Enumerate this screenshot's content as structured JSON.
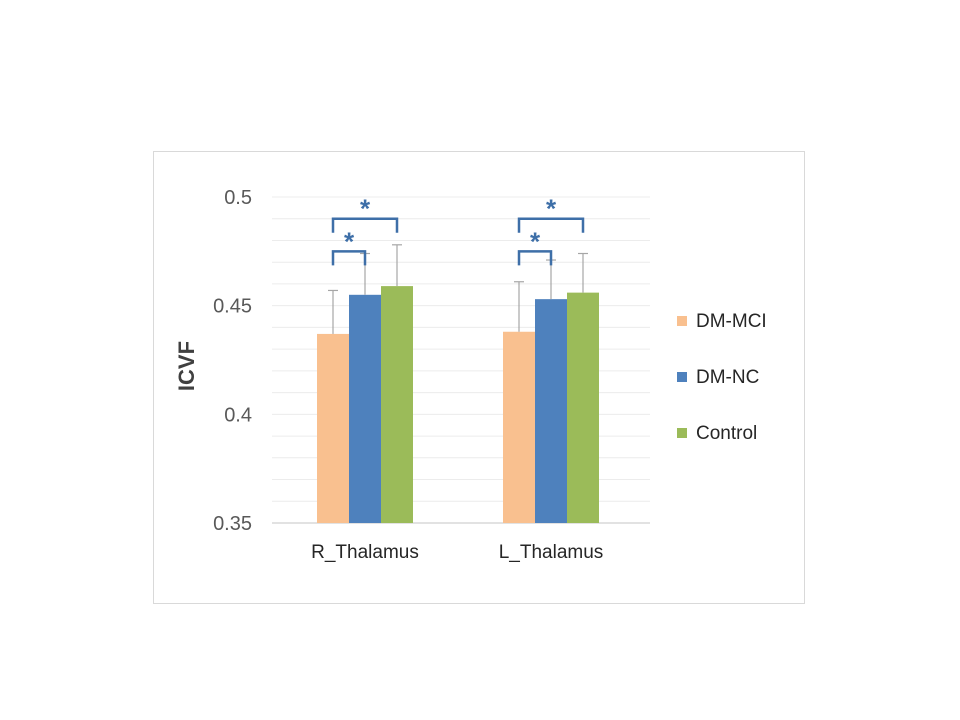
{
  "chart_data": {
    "type": "bar",
    "title": "",
    "xlabel": "",
    "ylabel": "ICVF",
    "ylim": [
      0.35,
      0.5
    ],
    "yticks": [
      0.35,
      0.4,
      0.45,
      0.5
    ],
    "ytick_labels": [
      "0.35",
      "0.4",
      "0.45",
      "0.5"
    ],
    "grid": true,
    "legend_position": "right",
    "categories": [
      "R_Thalamus",
      "L_Thalamus"
    ],
    "series": [
      {
        "name": "DM-MCI",
        "color": "#F9C08F",
        "values": [
          0.437,
          0.438
        ],
        "errors": [
          0.02,
          0.023
        ]
      },
      {
        "name": "DM-NC",
        "color": "#4E81BD",
        "values": [
          0.455,
          0.453
        ],
        "errors": [
          0.019,
          0.018
        ]
      },
      {
        "name": "Control",
        "color": "#9BBB59",
        "values": [
          0.459,
          0.456
        ],
        "errors": [
          0.019,
          0.018
        ]
      }
    ],
    "annotations": [
      {
        "category": "R_Thalamus",
        "from": "DM-MCI",
        "to": "DM-NC",
        "text": "*",
        "level": 0.475
      },
      {
        "category": "R_Thalamus",
        "from": "DM-MCI",
        "to": "Control",
        "text": "*",
        "level": 0.49
      },
      {
        "category": "L_Thalamus",
        "from": "DM-MCI",
        "to": "DM-NC",
        "text": "*",
        "level": 0.475
      },
      {
        "category": "L_Thalamus",
        "from": "DM-MCI",
        "to": "Control",
        "text": "*",
        "level": 0.49
      }
    ],
    "annotation_color": "#3E6FA8"
  }
}
